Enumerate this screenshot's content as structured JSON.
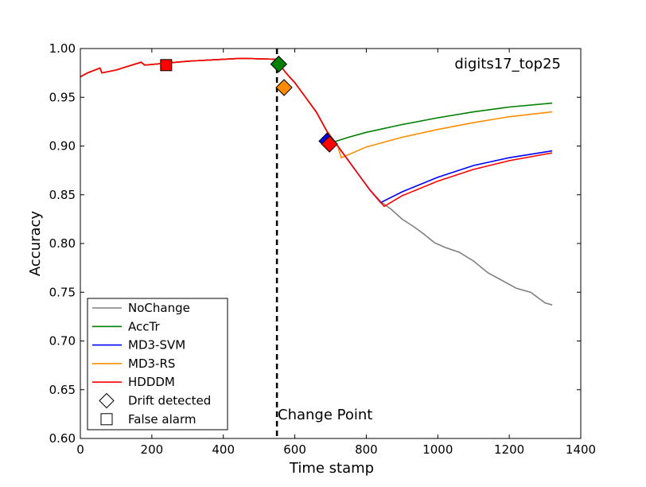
{
  "chart_data": {
    "type": "line",
    "title": "digits17_top25",
    "xlabel": "Time stamp",
    "ylabel": "Accuracy",
    "xlim": [
      0,
      1400
    ],
    "ylim": [
      0.6,
      1.0
    ],
    "xticks": [
      0,
      200,
      400,
      600,
      800,
      1000,
      1200,
      1400
    ],
    "xtick_labels": [
      "0",
      "200",
      "400",
      "600",
      "800",
      "1000",
      "1200",
      "1400"
    ],
    "yticks": [
      0.6,
      0.65,
      0.7,
      0.75,
      0.8,
      0.85,
      0.9,
      0.95,
      1.0
    ],
    "ytick_labels": [
      "0.60",
      "0.65",
      "0.70",
      "0.75",
      "0.80",
      "0.85",
      "0.90",
      "0.95",
      "1.00"
    ],
    "grid": false,
    "legend_position": "lower-left",
    "change_point": {
      "x": 550,
      "label": "Change Point"
    },
    "series": [
      {
        "name": "NoChange",
        "color": "#808080",
        "points": [
          [
            0,
            0.971
          ],
          [
            20,
            0.975
          ],
          [
            55,
            0.98
          ],
          [
            60,
            0.975
          ],
          [
            100,
            0.978
          ],
          [
            170,
            0.986
          ],
          [
            180,
            0.983
          ],
          [
            300,
            0.987
          ],
          [
            450,
            0.99
          ],
          [
            550,
            0.989
          ],
          [
            560,
            0.982
          ],
          [
            580,
            0.973
          ],
          [
            600,
            0.965
          ],
          [
            630,
            0.95
          ],
          [
            660,
            0.935
          ],
          [
            690,
            0.915
          ],
          [
            720,
            0.9
          ],
          [
            750,
            0.885
          ],
          [
            780,
            0.87
          ],
          [
            810,
            0.855
          ],
          [
            840,
            0.843
          ],
          [
            870,
            0.835
          ],
          [
            900,
            0.825
          ],
          [
            930,
            0.818
          ],
          [
            960,
            0.81
          ],
          [
            990,
            0.801
          ],
          [
            1020,
            0.796
          ],
          [
            1060,
            0.791
          ],
          [
            1100,
            0.782
          ],
          [
            1140,
            0.77
          ],
          [
            1180,
            0.762
          ],
          [
            1220,
            0.754
          ],
          [
            1260,
            0.75
          ],
          [
            1300,
            0.739
          ],
          [
            1320,
            0.737
          ]
        ]
      },
      {
        "name": "AccTr",
        "color": "#008000",
        "points": [
          [
            0,
            0.971
          ],
          [
            20,
            0.975
          ],
          [
            55,
            0.98
          ],
          [
            60,
            0.975
          ],
          [
            100,
            0.978
          ],
          [
            170,
            0.986
          ],
          [
            180,
            0.983
          ],
          [
            300,
            0.987
          ],
          [
            450,
            0.99
          ],
          [
            550,
            0.989
          ],
          [
            560,
            0.982
          ],
          [
            580,
            0.973
          ],
          [
            600,
            0.965
          ],
          [
            630,
            0.95
          ],
          [
            660,
            0.935
          ],
          [
            690,
            0.915
          ],
          [
            700,
            0.903
          ],
          [
            750,
            0.909
          ],
          [
            800,
            0.914
          ],
          [
            900,
            0.922
          ],
          [
            1000,
            0.929
          ],
          [
            1100,
            0.935
          ],
          [
            1200,
            0.94
          ],
          [
            1320,
            0.944
          ]
        ]
      },
      {
        "name": "MD3-SVM",
        "color": "#0000ff",
        "points": [
          [
            0,
            0.971
          ],
          [
            20,
            0.975
          ],
          [
            55,
            0.98
          ],
          [
            60,
            0.975
          ],
          [
            100,
            0.978
          ],
          [
            170,
            0.986
          ],
          [
            180,
            0.983
          ],
          [
            300,
            0.987
          ],
          [
            450,
            0.99
          ],
          [
            550,
            0.989
          ],
          [
            560,
            0.982
          ],
          [
            580,
            0.973
          ],
          [
            600,
            0.965
          ],
          [
            630,
            0.95
          ],
          [
            660,
            0.935
          ],
          [
            690,
            0.915
          ],
          [
            720,
            0.9
          ],
          [
            750,
            0.885
          ],
          [
            780,
            0.87
          ],
          [
            810,
            0.855
          ],
          [
            840,
            0.842
          ],
          [
            900,
            0.853
          ],
          [
            1000,
            0.868
          ],
          [
            1100,
            0.88
          ],
          [
            1200,
            0.888
          ],
          [
            1320,
            0.895
          ]
        ]
      },
      {
        "name": "MD3-RS",
        "color": "#ff8c00",
        "points": [
          [
            0,
            0.971
          ],
          [
            20,
            0.975
          ],
          [
            55,
            0.98
          ],
          [
            60,
            0.975
          ],
          [
            100,
            0.978
          ],
          [
            170,
            0.986
          ],
          [
            180,
            0.983
          ],
          [
            300,
            0.987
          ],
          [
            450,
            0.99
          ],
          [
            550,
            0.989
          ],
          [
            560,
            0.982
          ],
          [
            580,
            0.973
          ],
          [
            600,
            0.965
          ],
          [
            630,
            0.95
          ],
          [
            660,
            0.935
          ],
          [
            690,
            0.915
          ],
          [
            720,
            0.9
          ],
          [
            730,
            0.888
          ],
          [
            800,
            0.899
          ],
          [
            900,
            0.909
          ],
          [
            1000,
            0.917
          ],
          [
            1100,
            0.924
          ],
          [
            1200,
            0.93
          ],
          [
            1320,
            0.935
          ]
        ]
      },
      {
        "name": "HDDDM",
        "color": "#ff0000",
        "points": [
          [
            0,
            0.971
          ],
          [
            20,
            0.975
          ],
          [
            55,
            0.98
          ],
          [
            60,
            0.975
          ],
          [
            100,
            0.978
          ],
          [
            170,
            0.986
          ],
          [
            180,
            0.983
          ],
          [
            300,
            0.987
          ],
          [
            450,
            0.99
          ],
          [
            550,
            0.989
          ],
          [
            560,
            0.982
          ],
          [
            580,
            0.973
          ],
          [
            600,
            0.965
          ],
          [
            630,
            0.95
          ],
          [
            660,
            0.935
          ],
          [
            690,
            0.915
          ],
          [
            720,
            0.9
          ],
          [
            750,
            0.885
          ],
          [
            780,
            0.87
          ],
          [
            810,
            0.855
          ],
          [
            850,
            0.838
          ],
          [
            900,
            0.849
          ],
          [
            1000,
            0.864
          ],
          [
            1100,
            0.876
          ],
          [
            1200,
            0.885
          ],
          [
            1320,
            0.893
          ]
        ]
      }
    ],
    "markers": [
      {
        "series": "HDDDM",
        "kind": "False alarm",
        "shape": "square",
        "x": 240,
        "y": 0.983,
        "color": "#ff0000"
      },
      {
        "series": "AccTr",
        "kind": "Drift detected",
        "shape": "diamond",
        "x": 555,
        "y": 0.984,
        "color": "#008000"
      },
      {
        "series": "MD3-RS",
        "kind": "Drift detected",
        "shape": "diamond",
        "x": 570,
        "y": 0.96,
        "color": "#ff8c00"
      },
      {
        "series": "MD3-SVM",
        "kind": "Drift detected",
        "shape": "diamond",
        "x": 690,
        "y": 0.905,
        "color": "#0000ff"
      },
      {
        "series": "HDDDM",
        "kind": "Drift detected",
        "shape": "diamond",
        "x": 697,
        "y": 0.902,
        "color": "#ff0000"
      }
    ],
    "legend": [
      {
        "label": "NoChange",
        "type": "line",
        "color": "#808080"
      },
      {
        "label": "AccTr",
        "type": "line",
        "color": "#008000"
      },
      {
        "label": "MD3-SVM",
        "type": "line",
        "color": "#0000ff"
      },
      {
        "label": "MD3-RS",
        "type": "line",
        "color": "#ff8c00"
      },
      {
        "label": "HDDDM",
        "type": "line",
        "color": "#ff0000"
      },
      {
        "label": "Drift detected",
        "type": "diamond",
        "color": "#ffffff"
      },
      {
        "label": "False alarm",
        "type": "square",
        "color": "#ffffff"
      }
    ]
  }
}
